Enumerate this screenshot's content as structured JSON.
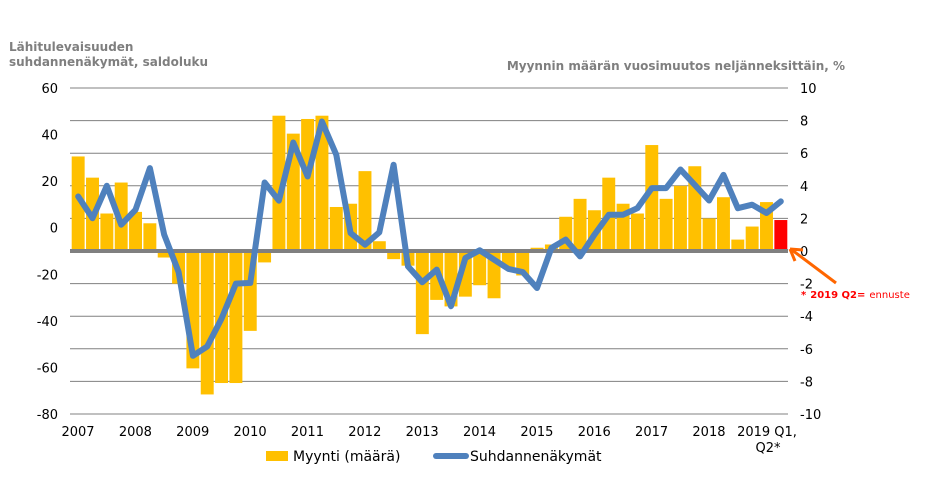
{
  "chart_data": {
    "type": "bar+line",
    "left_axis_title": [
      "Lähitulevaisuuden",
      "suhdannenäkymät, saldoluku"
    ],
    "right_axis_title": "Myynnin määrän vuosimuutos neljänneksittäin, %",
    "left_axis": {
      "ylim": [
        -80,
        60
      ],
      "ticks": [
        "60",
        "40",
        "20",
        "0",
        "-20",
        "-40",
        "-60",
        "-80"
      ]
    },
    "right_axis": {
      "ylim": [
        -10,
        10
      ],
      "ticks": [
        "10",
        "8",
        "6",
        "4",
        "2",
        "0",
        "-2",
        "-4",
        "-6",
        "-8",
        "-10"
      ]
    },
    "x_tick_labels": [
      "2007",
      "2008",
      "2009",
      "2010",
      "2011",
      "2012",
      "2013",
      "2014",
      "2015",
      "2016",
      "2017",
      "2018",
      "2019 Q1,",
      "Q2*"
    ],
    "x_range": "2007 Q1 – 2019 Q2 (quarterly)",
    "grid": true,
    "legend_placement": "bottom",
    "annotation": {
      "star": "*",
      "bold": "2019 Q2=",
      "text": "ennuste"
    },
    "series": [
      {
        "name": "Myynti (määrä)",
        "type": "bar",
        "axis": "right",
        "color": "#FFC000",
        "forecast_color": "#FF0000",
        "values": [
          5.8,
          4.5,
          2.3,
          4.2,
          2.4,
          1.7,
          -0.4,
          -2.0,
          -7.2,
          -8.8,
          -8.1,
          -8.1,
          -4.9,
          -0.7,
          8.3,
          7.2,
          8.1,
          8.3,
          2.7,
          2.9,
          4.9,
          0.6,
          -0.5,
          -0.9,
          -5.1,
          -3.0,
          -3.4,
          -2.8,
          -2.1,
          -2.9,
          -1.0,
          -1.5,
          0.2,
          0.4,
          2.1,
          3.2,
          2.5,
          4.5,
          2.9,
          2.3,
          6.5,
          3.2,
          4.0,
          5.2,
          2.0,
          3.3,
          0.7,
          1.5,
          3.0,
          1.9
        ]
      },
      {
        "name": "Suhdannenäkymät",
        "type": "line",
        "axis": "left",
        "color": "#4F81BD",
        "values": [
          13.4,
          4.1,
          18,
          1.3,
          7.7,
          25.6,
          -3,
          -19,
          -55,
          -51,
          -39,
          -24,
          -23.7,
          19.4,
          11.6,
          36.6,
          22,
          45.6,
          31.3,
          -2.3,
          -7.3,
          -2,
          27,
          -16.6,
          -23.4,
          -18,
          -33.7,
          -13,
          -9.7,
          -13.7,
          -17.7,
          -19,
          -25.9,
          -8.7,
          -5.1,
          -12.3,
          -3,
          5.6,
          5.6,
          8.4,
          17,
          17,
          25,
          18.4,
          11.7,
          22.7,
          8.4,
          9.9,
          6.3,
          11.3
        ]
      }
    ]
  }
}
